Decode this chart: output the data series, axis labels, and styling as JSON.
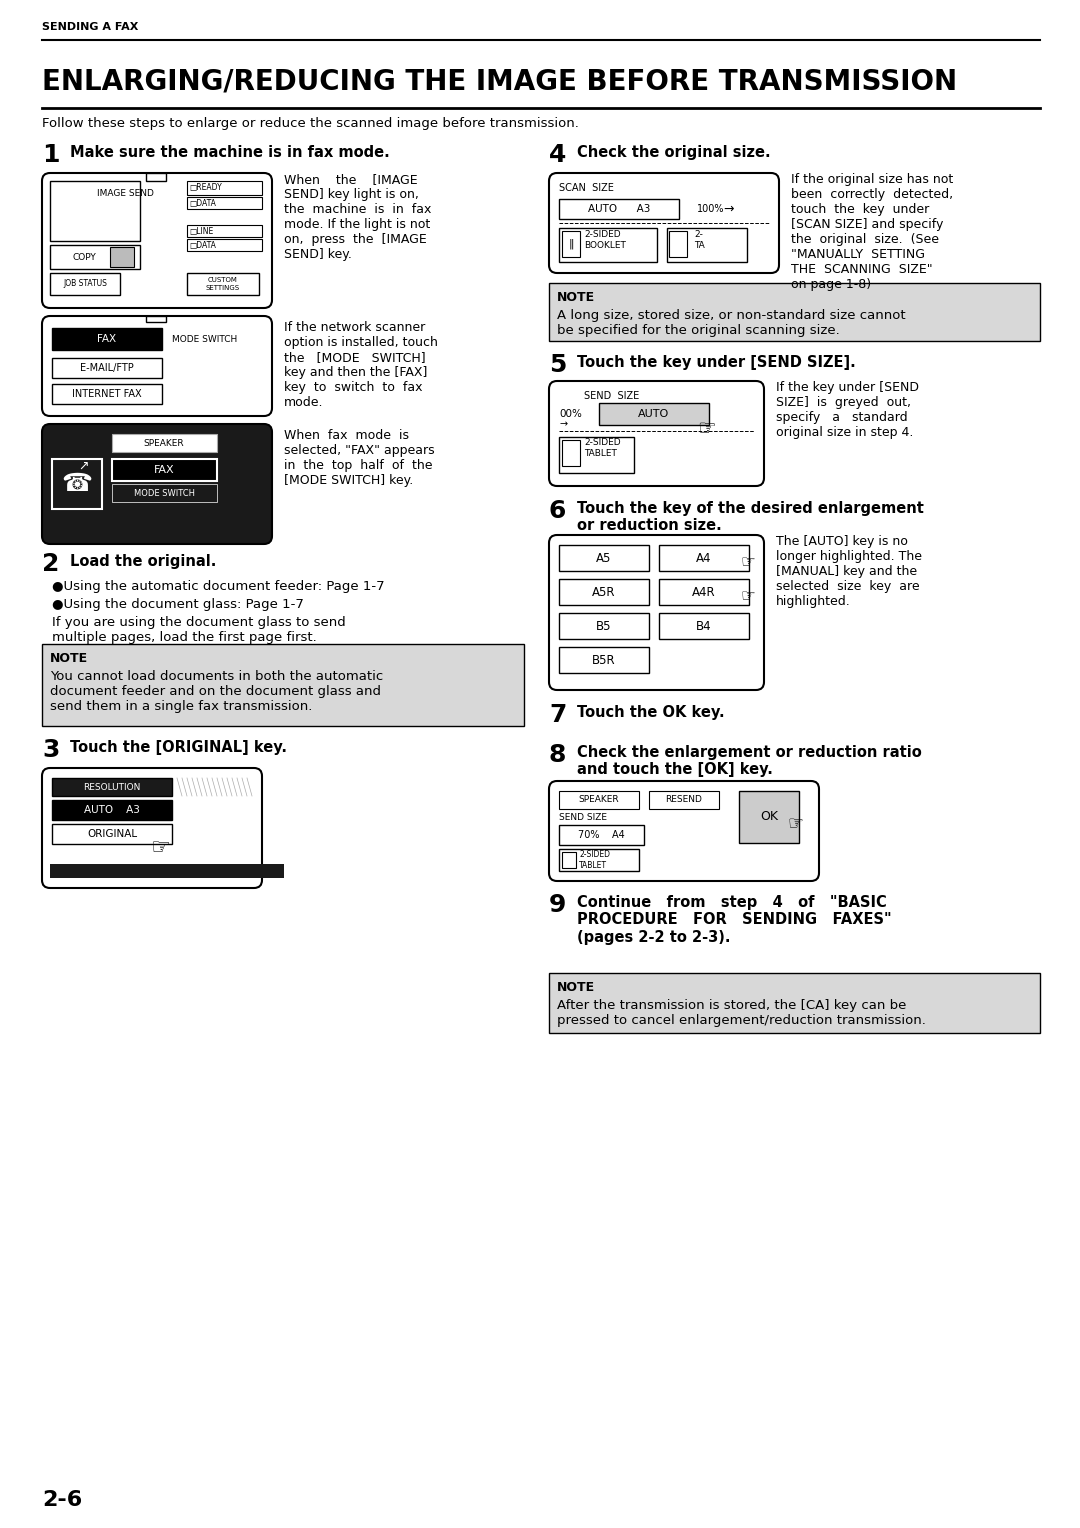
{
  "page_bg": "#ffffff",
  "header_text": "SENDING A FAX",
  "title": "ENLARGING/REDUCING THE IMAGE BEFORE TRANSMISSION",
  "subtitle": "Follow these steps to enlarge or reduce the scanned image before transmission.",
  "page_number": "2-6",
  "step1_num": "1",
  "step1_title": "Make sure the machine is in fax mode.",
  "step1_text1": "When    the    [IMAGE\nSEND] key light is on,\nthe  machine  is  in  fax\nmode. If the light is not\non,  press  the  [IMAGE\nSEND] key.",
  "step1_text2": "If the network scanner\noption is installed, touch\nthe   [MODE   SWITCH]\nkey and then the [FAX]\nkey  to  switch  to  fax\nmode.",
  "step1_text3": "When  fax  mode  is\nselected, \"FAX\" appears\nin  the  top  half  of  the\n[MODE SWITCH] key.",
  "step2_num": "2",
  "step2_title": "Load the original.",
  "step2_b1": "●Using the automatic document feeder: Page 1-7",
  "step2_b2": "●Using the document glass: Page 1-7",
  "step2_text": "If you are using the document glass to send\nmultiple pages, load the first page first.",
  "note1_title": "NOTE",
  "note1_text": "You cannot load documents in both the automatic\ndocument feeder and on the document glass and\nsend them in a single fax transmission.",
  "step3_num": "3",
  "step3_title": "Touch the [ORIGINAL] key.",
  "step4_num": "4",
  "step4_title": "Check the original size.",
  "step4_text": "If the original size has not\nbeen  correctly  detected,\ntouch  the  key  under\n[SCAN SIZE] and specify\nthe  original  size.  (See\n\"MANUALLY  SETTING\nTHE  SCANNING  SIZE\"\non page 1-8)",
  "note2_title": "NOTE",
  "note2_text": "A long size, stored size, or non-standard size cannot\nbe specified for the original scanning size.",
  "step5_num": "5",
  "step5_title": "Touch the key under [SEND SIZE].",
  "step5_text": "If the key under [SEND\nSIZE]  is  greyed  out,\nspecify   a   standard\noriginal size in step 4.",
  "step6_num": "6",
  "step6_title": "Touch the key of the desired enlargement\nor reduction size.",
  "step6_text": "The [AUTO] key is no\nlonger highlighted. The\n[MANUAL] key and the\nselected  size  key  are\nhighlighted.",
  "step7_num": "7",
  "step7_title": "Touch the OK key.",
  "step8_num": "8",
  "step8_title": "Check the enlargement or reduction ratio\nand touch the [OK] key.",
  "step9_num": "9",
  "step9_title": "Continue   from   step   4   of   \"BASIC\nPROCEDURE   FOR   SENDING   FAXES\"\n(pages 2-2 to 2-3).",
  "note3_title": "NOTE",
  "note3_text": "After the transmission is stored, the [CA] key can be\npressed to cancel enlargement/reduction transmission."
}
